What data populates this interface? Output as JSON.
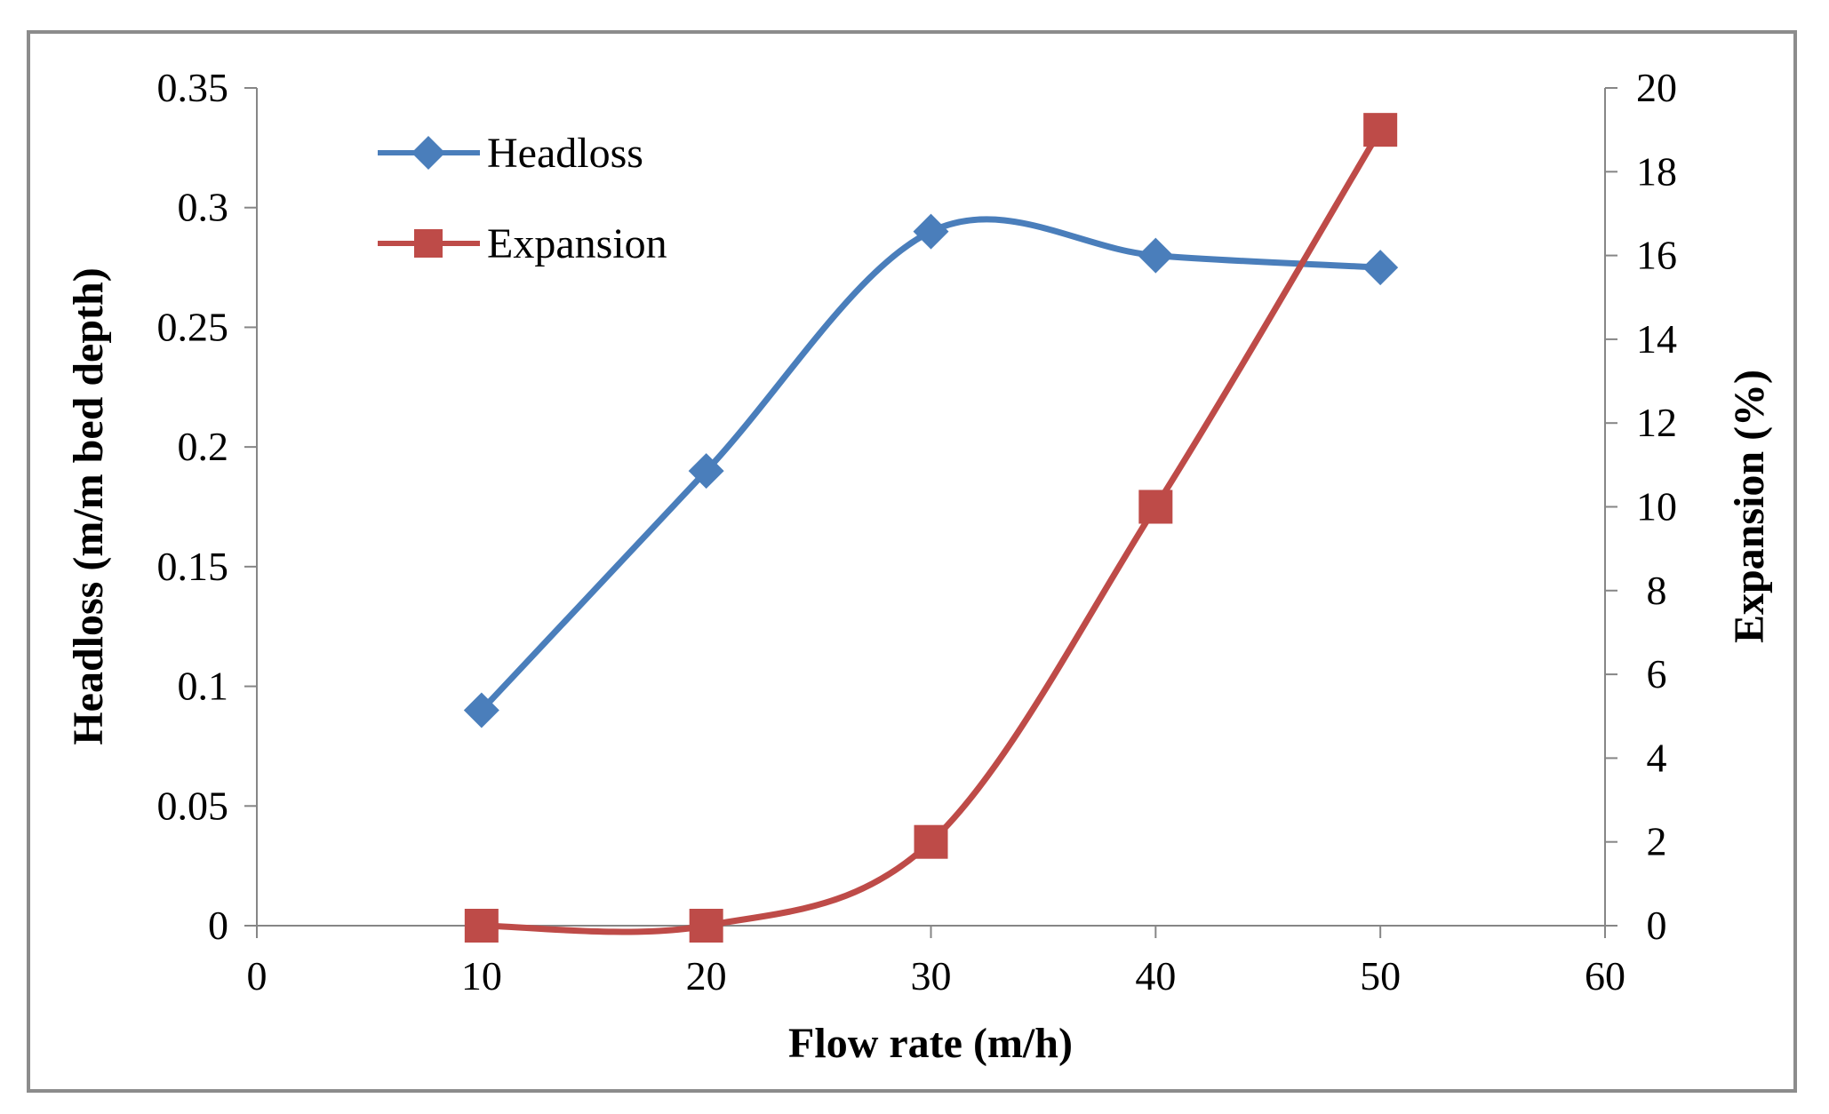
{
  "chart_data": {
    "type": "line",
    "smoothed": true,
    "xlabel": "Flow rate (m/h)",
    "ylabel_left": "Headloss (m/m bed depth)",
    "ylabel_right": "Expansion (%)",
    "xlim": [
      0,
      60
    ],
    "xticks": [
      "0",
      "10",
      "20",
      "30",
      "40",
      "50",
      "60"
    ],
    "ylim_left": [
      0,
      0.35
    ],
    "yticks_left": [
      "0",
      "0.05",
      "0.1",
      "0.15",
      "0.2",
      "0.25",
      "0.3",
      "0.35"
    ],
    "ylim_right": [
      0,
      20
    ],
    "yticks_right": [
      "0",
      "2",
      "4",
      "6",
      "8",
      "10",
      "12",
      "14",
      "16",
      "18",
      "20"
    ],
    "grid": false,
    "legend_position": "top-left",
    "series": [
      {
        "name": "Headloss",
        "axis": "left",
        "marker": "diamond",
        "color": "#4a7ebb",
        "x": [
          10,
          20,
          30,
          40,
          50
        ],
        "y": [
          0.09,
          0.19,
          0.29,
          0.28,
          0.275
        ]
      },
      {
        "name": "Expansion",
        "axis": "right",
        "marker": "square",
        "color": "#be4b48",
        "x": [
          10,
          20,
          30,
          40,
          50
        ],
        "y": [
          0,
          0,
          2,
          10,
          19
        ]
      }
    ]
  }
}
